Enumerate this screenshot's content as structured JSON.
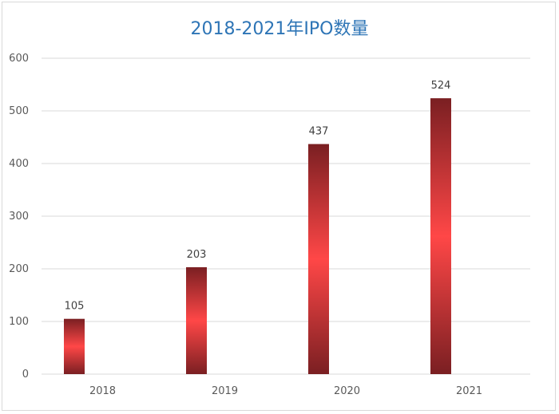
{
  "chart_data": {
    "type": "bar",
    "title": "2018-2021年IPO数量",
    "categories": [
      "2018",
      "2019",
      "2020",
      "2021"
    ],
    "values": [
      105,
      203,
      437,
      524
    ],
    "data_labels": [
      "105",
      "203",
      "437",
      "524"
    ],
    "ylim": [
      0,
      600
    ],
    "y_ticks": [
      "0",
      "100",
      "200",
      "300",
      "400",
      "500",
      "600"
    ],
    "xlabel": "",
    "ylabel": "",
    "grid": true,
    "legend": "none",
    "colors": {
      "bar_center": "#ff4747",
      "bar_edge": "#7a1f22",
      "grid": "#d9d9d9",
      "title": "#2e75b6"
    }
  }
}
